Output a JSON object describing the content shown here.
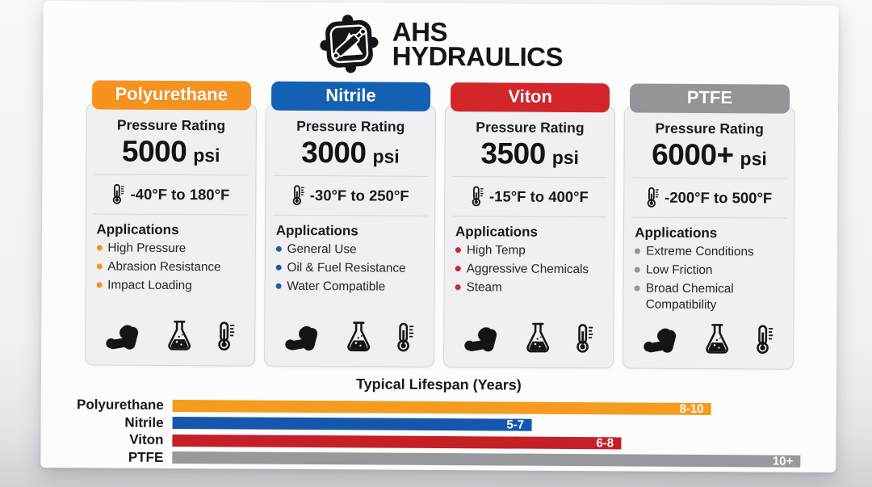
{
  "brand": {
    "line1": "AHS",
    "line2": "HYDRAULICS"
  },
  "labels": {
    "pressure_rating": "Pressure Rating",
    "applications": "Applications"
  },
  "materials": [
    {
      "name": "Polyurethane",
      "color": "#F6921E",
      "pressure_value": "5000",
      "pressure_unit": "psi",
      "temp_range": "-40°F to 180°F",
      "applications": [
        "High Pressure",
        "Abrasion Resistance",
        "Impact Loading"
      ]
    },
    {
      "name": "Nitrile",
      "color": "#1460B2",
      "pressure_value": "3000",
      "pressure_unit": "psi",
      "temp_range": "-30°F to 250°F",
      "applications": [
        "General Use",
        "Oil & Fuel Resistance",
        "Water Compatible"
      ]
    },
    {
      "name": "Viton",
      "color": "#D2262B",
      "pressure_value": "3500",
      "pressure_unit": "psi",
      "temp_range": "-15°F to 400°F",
      "applications": [
        "High Temp",
        "Aggressive Chemicals",
        "Steam"
      ]
    },
    {
      "name": "PTFE",
      "color": "#939599",
      "pressure_value": "6000+",
      "pressure_unit": "psi",
      "temp_range": "-200°F to 500°F",
      "applications": [
        "Extreme Conditions",
        "Low Friction",
        "Broad Chemical Compatibility"
      ]
    }
  ],
  "chart_data": {
    "type": "bar",
    "orientation": "horizontal",
    "title": "Typical Lifespan (Years)",
    "categories": [
      "Polyurethane",
      "Nitrile",
      "Viton",
      "PTFE"
    ],
    "values": [
      9,
      6,
      7.5,
      10.5
    ],
    "value_labels": [
      "8-10",
      "5-7",
      "6-8",
      "10+"
    ],
    "colors": [
      "#F59B1E",
      "#1557AE",
      "#C51F27",
      "#97999C"
    ],
    "xlim": [
      0,
      10.5
    ],
    "grid": false,
    "legend": false
  },
  "icons": {
    "logo": "hydraulic-cylinder-badge",
    "strength": "flexed-arm-muscle",
    "chemical": "erlenmeyer-flask",
    "temperature": "thermometer"
  }
}
